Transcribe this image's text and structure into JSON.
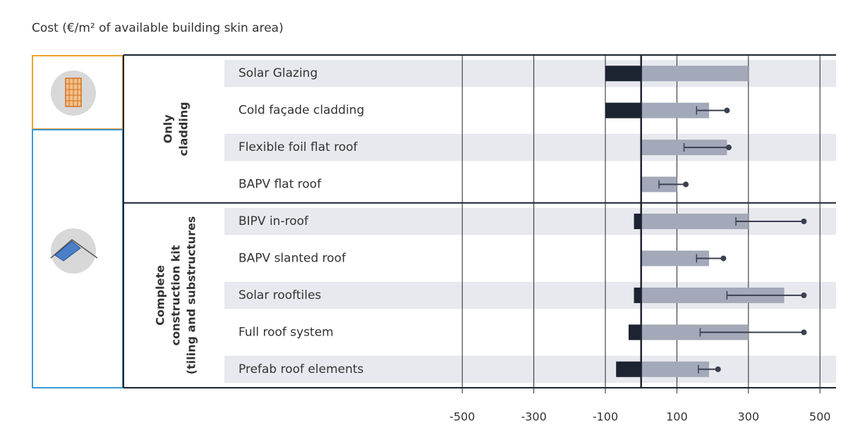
{
  "chart_data": {
    "type": "bar",
    "title": "Cost (€/m² of available building skin area)",
    "groups": [
      {
        "lines": [
          "Only",
          "cladding"
        ],
        "count": 4
      },
      {
        "lines": [
          "Complete",
          "construction kit",
          "(tiling and substructures"
        ],
        "count": 5
      }
    ],
    "categories": [
      "Solar Glazing",
      "Cold façade cladding",
      "Flexible foil flat roof",
      "BAPV flat roof",
      "BIPV in-roof",
      "BAPV slanted roof",
      "Solar rooftiles",
      "Full roof system",
      "Prefab roof elements"
    ],
    "series": [
      {
        "color": "#1c2331",
        "values": [
          -100,
          -100,
          null,
          null,
          -20,
          null,
          -20,
          -35,
          -70
        ]
      },
      {
        "color": "#a3a9b8",
        "values": [
          300,
          190,
          240,
          100,
          300,
          190,
          400,
          300,
          190
        ],
        "error_low": [
          null,
          155,
          120,
          50,
          265,
          155,
          240,
          165,
          160
        ],
        "error_high": [
          null,
          240,
          245,
          125,
          455,
          230,
          455,
          455,
          215
        ]
      }
    ],
    "xlim": [
      -530,
      545
    ],
    "xticks": [
      -500,
      -300,
      -100,
      100,
      300,
      500
    ],
    "zero_line": 0,
    "grid": true
  }
}
